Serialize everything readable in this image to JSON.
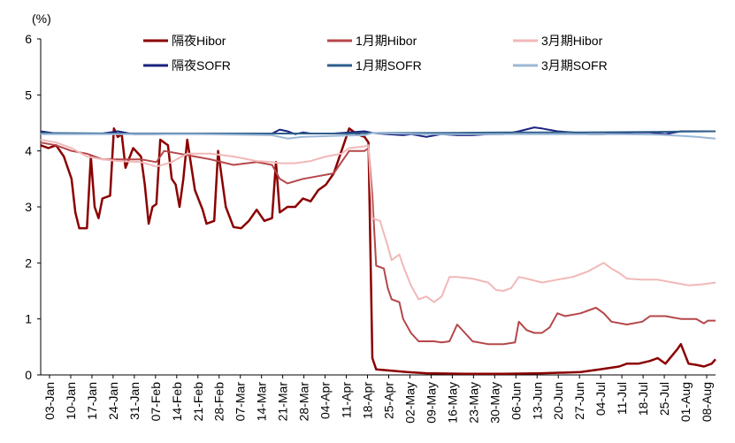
{
  "chart_data": {
    "type": "line",
    "title": "",
    "unit_label": "(%)",
    "xlabel": "",
    "ylabel": "",
    "ylim": [
      0,
      6
    ],
    "yticks": [
      "0",
      "1",
      "2",
      "3",
      "4",
      "5",
      "6"
    ],
    "xticks": [
      "03-Jan",
      "10-Jan",
      "17-Jan",
      "24-Jan",
      "31-Jan",
      "07-Feb",
      "14-Feb",
      "21-Feb",
      "28-Feb",
      "07-Mar",
      "14-Mar",
      "21-Mar",
      "28-Mar",
      "04-Apr",
      "11-Apr",
      "18-Apr",
      "25-Apr",
      "02-May",
      "09-May",
      "16-May",
      "23-May",
      "30-May",
      "06-Jun",
      "13-Jun",
      "20-Jun",
      "27-Jun",
      "04-Jul",
      "11-Jul",
      "18-Jul",
      "25-Jul",
      "01-Aug",
      "08-Aug"
    ],
    "grid": false,
    "legend_position": "top",
    "series": [
      {
        "name": "隔夜Hibor",
        "color": "#8b0000",
        "width": 2.5,
        "points": [
          [
            0,
            4.1
          ],
          [
            2,
            4.05
          ],
          [
            4,
            4.1
          ],
          [
            6,
            3.9
          ],
          [
            8,
            3.5
          ],
          [
            9,
            2.9
          ],
          [
            10,
            2.62
          ],
          [
            12,
            2.62
          ],
          [
            13,
            3.9
          ],
          [
            14,
            3.0
          ],
          [
            15,
            2.8
          ],
          [
            16,
            3.15
          ],
          [
            18,
            3.2
          ],
          [
            19,
            4.4
          ],
          [
            20,
            4.25
          ],
          [
            21,
            4.3
          ],
          [
            22,
            3.7
          ],
          [
            24,
            4.05
          ],
          [
            26,
            3.9
          ],
          [
            27,
            3.4
          ],
          [
            28,
            2.7
          ],
          [
            29,
            3.0
          ],
          [
            30,
            3.05
          ],
          [
            31,
            4.2
          ],
          [
            33,
            4.1
          ],
          [
            34,
            3.5
          ],
          [
            35,
            3.4
          ],
          [
            36,
            3.0
          ],
          [
            37,
            3.5
          ],
          [
            38,
            4.2
          ],
          [
            40,
            3.3
          ],
          [
            42,
            2.95
          ],
          [
            43,
            2.7
          ],
          [
            45,
            2.75
          ],
          [
            46,
            4.0
          ],
          [
            48,
            3.0
          ],
          [
            50,
            2.64
          ],
          [
            52,
            2.62
          ],
          [
            54,
            2.75
          ],
          [
            56,
            2.95
          ],
          [
            58,
            2.75
          ],
          [
            60,
            2.8
          ],
          [
            61,
            3.8
          ],
          [
            62,
            2.9
          ],
          [
            64,
            3.0
          ],
          [
            66,
            3.0
          ],
          [
            68,
            3.15
          ],
          [
            70,
            3.1
          ],
          [
            72,
            3.3
          ],
          [
            74,
            3.4
          ],
          [
            76,
            3.6
          ],
          [
            78,
            4.0
          ],
          [
            80,
            4.4
          ],
          [
            82,
            4.3
          ],
          [
            84,
            4.25
          ],
          [
            85,
            4.15
          ],
          [
            86,
            0.3
          ],
          [
            87,
            0.1
          ],
          [
            90,
            0.08
          ],
          [
            95,
            0.05
          ],
          [
            100,
            0.03
          ],
          [
            110,
            0.02
          ],
          [
            120,
            0.02
          ],
          [
            130,
            0.03
          ],
          [
            140,
            0.05
          ],
          [
            145,
            0.1
          ],
          [
            150,
            0.15
          ],
          [
            152,
            0.2
          ],
          [
            155,
            0.2
          ],
          [
            158,
            0.25
          ],
          [
            160,
            0.3
          ],
          [
            162,
            0.2
          ],
          [
            165,
            0.45
          ],
          [
            166,
            0.55
          ],
          [
            168,
            0.2
          ],
          [
            170,
            0.18
          ],
          [
            172,
            0.15
          ],
          [
            174,
            0.2
          ],
          [
            175,
            0.28
          ]
        ]
      },
      {
        "name": "1月期Hibor",
        "color": "#b5474a",
        "width": 2.0,
        "points": [
          [
            0,
            4.15
          ],
          [
            4,
            4.1
          ],
          [
            8,
            4.0
          ],
          [
            12,
            3.95
          ],
          [
            16,
            3.85
          ],
          [
            20,
            3.85
          ],
          [
            26,
            3.85
          ],
          [
            30,
            3.8
          ],
          [
            32,
            4.0
          ],
          [
            36,
            3.95
          ],
          [
            40,
            3.9
          ],
          [
            44,
            3.85
          ],
          [
            50,
            3.75
          ],
          [
            56,
            3.8
          ],
          [
            60,
            3.75
          ],
          [
            62,
            3.5
          ],
          [
            64,
            3.42
          ],
          [
            68,
            3.5
          ],
          [
            72,
            3.55
          ],
          [
            76,
            3.6
          ],
          [
            78,
            3.8
          ],
          [
            80,
            4.0
          ],
          [
            84,
            4.0
          ],
          [
            85,
            4.05
          ],
          [
            86,
            3.2
          ],
          [
            87,
            1.95
          ],
          [
            89,
            1.9
          ],
          [
            90,
            1.55
          ],
          [
            91,
            1.35
          ],
          [
            93,
            1.3
          ],
          [
            94,
            1.0
          ],
          [
            96,
            0.75
          ],
          [
            98,
            0.6
          ],
          [
            102,
            0.6
          ],
          [
            104,
            0.58
          ],
          [
            106,
            0.6
          ],
          [
            108,
            0.9
          ],
          [
            110,
            0.75
          ],
          [
            112,
            0.6
          ],
          [
            116,
            0.55
          ],
          [
            120,
            0.55
          ],
          [
            123,
            0.58
          ],
          [
            124,
            0.95
          ],
          [
            126,
            0.8
          ],
          [
            128,
            0.75
          ],
          [
            130,
            0.75
          ],
          [
            132,
            0.85
          ],
          [
            134,
            1.1
          ],
          [
            136,
            1.05
          ],
          [
            140,
            1.1
          ],
          [
            144,
            1.2
          ],
          [
            146,
            1.1
          ],
          [
            148,
            0.95
          ],
          [
            152,
            0.9
          ],
          [
            156,
            0.95
          ],
          [
            158,
            1.05
          ],
          [
            162,
            1.05
          ],
          [
            166,
            1.0
          ],
          [
            170,
            1.0
          ],
          [
            172,
            0.92
          ],
          [
            173,
            0.97
          ],
          [
            175,
            0.97
          ]
        ]
      },
      {
        "name": "3月期Hibor",
        "color": "#f2b8b8",
        "width": 2.0,
        "points": [
          [
            0,
            4.2
          ],
          [
            4,
            4.15
          ],
          [
            8,
            4.05
          ],
          [
            12,
            3.9
          ],
          [
            16,
            3.85
          ],
          [
            20,
            3.82
          ],
          [
            26,
            3.8
          ],
          [
            30,
            3.72
          ],
          [
            34,
            3.8
          ],
          [
            38,
            3.95
          ],
          [
            44,
            3.95
          ],
          [
            50,
            3.9
          ],
          [
            56,
            3.82
          ],
          [
            60,
            3.8
          ],
          [
            62,
            3.78
          ],
          [
            66,
            3.78
          ],
          [
            70,
            3.82
          ],
          [
            74,
            3.9
          ],
          [
            78,
            3.95
          ],
          [
            80,
            4.05
          ],
          [
            84,
            4.08
          ],
          [
            85,
            4.1
          ],
          [
            86,
            2.8
          ],
          [
            88,
            2.75
          ],
          [
            90,
            2.3
          ],
          [
            91,
            2.05
          ],
          [
            93,
            2.15
          ],
          [
            94,
            1.95
          ],
          [
            96,
            1.6
          ],
          [
            98,
            1.35
          ],
          [
            100,
            1.4
          ],
          [
            102,
            1.3
          ],
          [
            104,
            1.4
          ],
          [
            106,
            1.75
          ],
          [
            108,
            1.75
          ],
          [
            112,
            1.72
          ],
          [
            116,
            1.65
          ],
          [
            118,
            1.52
          ],
          [
            120,
            1.5
          ],
          [
            122,
            1.55
          ],
          [
            124,
            1.75
          ],
          [
            126,
            1.72
          ],
          [
            130,
            1.65
          ],
          [
            134,
            1.7
          ],
          [
            138,
            1.75
          ],
          [
            142,
            1.85
          ],
          [
            146,
            2.0
          ],
          [
            148,
            1.9
          ],
          [
            150,
            1.82
          ],
          [
            152,
            1.72
          ],
          [
            156,
            1.7
          ],
          [
            160,
            1.7
          ],
          [
            164,
            1.65
          ],
          [
            168,
            1.6
          ],
          [
            172,
            1.62
          ],
          [
            175,
            1.65
          ]
        ]
      },
      {
        "name": "隔夜SOFR",
        "color": "#1a237e",
        "width": 2.0,
        "points": [
          [
            0,
            4.35
          ],
          [
            4,
            4.31
          ],
          [
            10,
            4.31
          ],
          [
            16,
            4.31
          ],
          [
            20,
            4.35
          ],
          [
            24,
            4.3
          ],
          [
            30,
            4.3
          ],
          [
            36,
            4.31
          ],
          [
            44,
            4.31
          ],
          [
            50,
            4.31
          ],
          [
            56,
            4.31
          ],
          [
            60,
            4.31
          ],
          [
            62,
            4.38
          ],
          [
            64,
            4.35
          ],
          [
            66,
            4.3
          ],
          [
            68,
            4.33
          ],
          [
            70,
            4.31
          ],
          [
            76,
            4.31
          ],
          [
            80,
            4.33
          ],
          [
            84,
            4.35
          ],
          [
            86,
            4.32
          ],
          [
            90,
            4.3
          ],
          [
            94,
            4.28
          ],
          [
            96,
            4.3
          ],
          [
            100,
            4.25
          ],
          [
            104,
            4.3
          ],
          [
            108,
            4.28
          ],
          [
            112,
            4.28
          ],
          [
            116,
            4.3
          ],
          [
            120,
            4.3
          ],
          [
            124,
            4.35
          ],
          [
            128,
            4.42
          ],
          [
            130,
            4.4
          ],
          [
            134,
            4.35
          ],
          [
            138,
            4.33
          ],
          [
            142,
            4.3
          ],
          [
            146,
            4.3
          ],
          [
            150,
            4.32
          ],
          [
            154,
            4.33
          ],
          [
            158,
            4.33
          ],
          [
            162,
            4.3
          ],
          [
            166,
            4.35
          ],
          [
            170,
            4.35
          ],
          [
            175,
            4.35
          ]
        ]
      },
      {
        "name": "1月期SOFR",
        "color": "#2e5e8a",
        "width": 2.0,
        "points": [
          [
            0,
            4.32
          ],
          [
            20,
            4.31
          ],
          [
            40,
            4.31
          ],
          [
            60,
            4.31
          ],
          [
            80,
            4.31
          ],
          [
            86,
            4.32
          ],
          [
            100,
            4.32
          ],
          [
            120,
            4.33
          ],
          [
            140,
            4.33
          ],
          [
            160,
            4.34
          ],
          [
            175,
            4.35
          ]
        ]
      },
      {
        "name": "3月期SOFR",
        "color": "#9bb7d6",
        "width": 2.0,
        "points": [
          [
            0,
            4.3
          ],
          [
            20,
            4.3
          ],
          [
            40,
            4.3
          ],
          [
            60,
            4.28
          ],
          [
            64,
            4.22
          ],
          [
            68,
            4.25
          ],
          [
            76,
            4.27
          ],
          [
            84,
            4.28
          ],
          [
            86,
            4.32
          ],
          [
            100,
            4.3
          ],
          [
            110,
            4.3
          ],
          [
            120,
            4.3
          ],
          [
            130,
            4.3
          ],
          [
            140,
            4.3
          ],
          [
            150,
            4.3
          ],
          [
            160,
            4.29
          ],
          [
            166,
            4.27
          ],
          [
            170,
            4.25
          ],
          [
            175,
            4.22
          ]
        ]
      }
    ],
    "x_range": [
      0,
      175
    ]
  }
}
